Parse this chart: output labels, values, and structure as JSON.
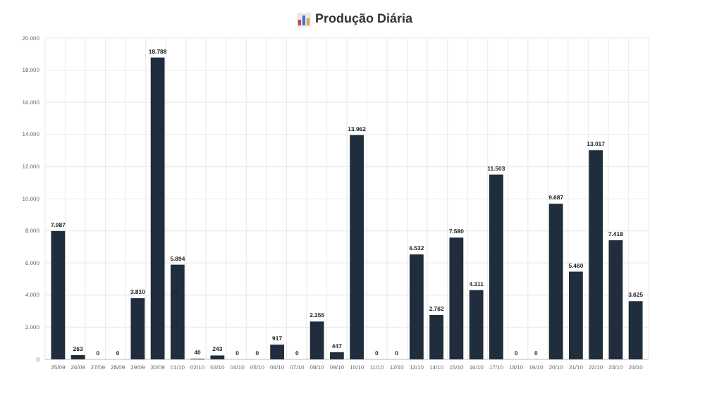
{
  "chart_data": {
    "type": "bar",
    "title": "Produção Diária",
    "categories": [
      "25/09",
      "26/09",
      "27/09",
      "28/09",
      "29/09",
      "30/09",
      "01/10",
      "02/10",
      "03/10",
      "04/10",
      "05/10",
      "06/10",
      "07/10",
      "08/10",
      "09/10",
      "10/10",
      "11/10",
      "12/10",
      "13/10",
      "14/10",
      "15/10",
      "16/10",
      "17/10",
      "18/10",
      "19/10",
      "20/10",
      "21/10",
      "22/10",
      "23/10",
      "24/10"
    ],
    "values": [
      7987,
      263,
      0,
      0,
      3810,
      18788,
      5894,
      40,
      243,
      0,
      0,
      917,
      0,
      2355,
      447,
      13962,
      0,
      0,
      6532,
      2762,
      7580,
      4311,
      11503,
      0,
      0,
      9687,
      5460,
      13017,
      7418,
      3625
    ],
    "value_labels": [
      "7.987",
      "263",
      "0",
      "0",
      "3.810",
      "18.788",
      "5.894",
      "40",
      "243",
      "0",
      "0",
      "917",
      "0",
      "2.355",
      "447",
      "13.962",
      "0",
      "0",
      "6.532",
      "2.762",
      "7.580",
      "4.311",
      "11.503",
      "0",
      "0",
      "9.687",
      "5.460",
      "13.017",
      "7.418",
      "3.625"
    ],
    "color": "#1f2d3d",
    "ylim": [
      0,
      20000
    ],
    "yticks": [
      0,
      {
        "value": 2000,
        "label": "2.000"
      },
      {
        "value": 4000,
        "label": "4.000"
      },
      {
        "value": 6000,
        "label": "6.000"
      },
      {
        "value": 8000,
        "label": "8.000"
      },
      {
        "value": 10000,
        "label": "10.000"
      },
      {
        "value": 12000,
        "label": "12.000"
      },
      {
        "value": 14000,
        "label": "14.000"
      },
      {
        "value": 16000,
        "label": "16.000"
      },
      {
        "value": 18000,
        "label": "18.000"
      },
      {
        "value": 20000,
        "label": "20.000"
      }
    ],
    "grid": true
  }
}
